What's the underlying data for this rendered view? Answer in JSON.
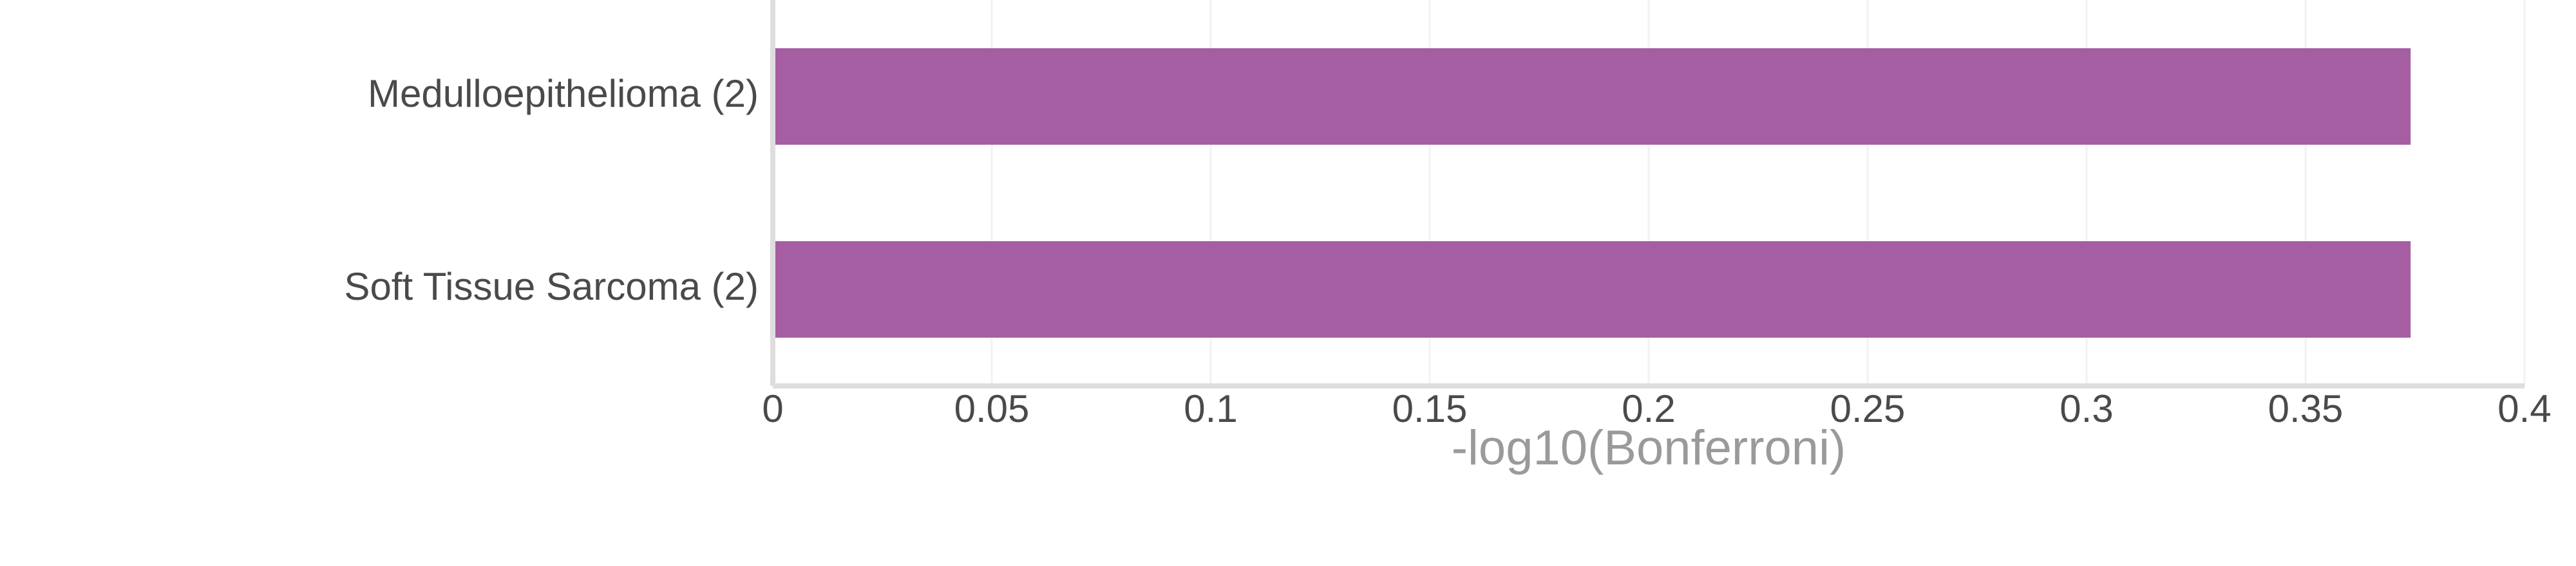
{
  "chart_data": {
    "type": "bar",
    "orientation": "horizontal",
    "categories": [
      "Medulloepithelioma (2)",
      "Soft Tissue Sarcoma (2)"
    ],
    "values": [
      0.374,
      0.374
    ],
    "xlabel": "-log10(Bonferroni)",
    "xlim": [
      0,
      0.4
    ],
    "xticks": [
      "0",
      "0.05",
      "0.1",
      "0.15",
      "0.2",
      "0.25",
      "0.3",
      "0.35",
      "0.4"
    ],
    "grid": true,
    "bar_color": "#a65ea3"
  }
}
